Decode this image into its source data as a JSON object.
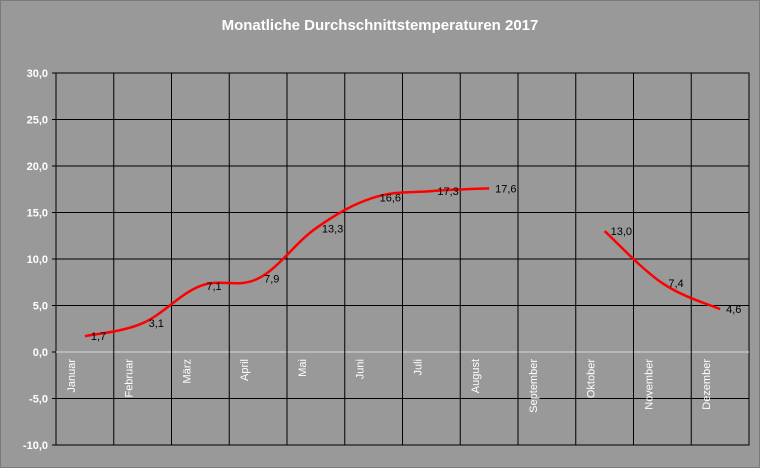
{
  "chart_data": {
    "type": "line",
    "title": "Monatliche Durchschnittstemperaturen 2017",
    "xlabel": "",
    "ylabel": "",
    "categories": [
      "Januar",
      "Februar",
      "März",
      "April",
      "Mai",
      "Juni",
      "Juli",
      "August",
      "September",
      "Oktober",
      "November",
      "Dezember"
    ],
    "series": [
      {
        "values": [
          1.7,
          3.1,
          7.1,
          7.9,
          13.3,
          16.6,
          17.3,
          17.6,
          null,
          13.0,
          7.4,
          4.6
        ],
        "labels": [
          "1,7",
          "3,1",
          "7,1",
          "7,9",
          "13,3",
          "16,6",
          "17,3",
          "17,6",
          "",
          "13,0",
          "7,4",
          "4,6"
        ],
        "color": "#ff0000"
      }
    ],
    "ylim": [
      -10,
      30
    ],
    "yticks": [
      30,
      25,
      20,
      15,
      10,
      5,
      0,
      -5,
      -10
    ],
    "ytick_labels": [
      "30,0",
      "25,0",
      "20,0",
      "15,0",
      "10,0",
      "5,0",
      "0,0",
      "-5,0",
      "-10,0"
    ],
    "grid": true,
    "legend": "none",
    "colors": {
      "background": "#999999",
      "gridline": "#000000",
      "zero_line": "#c8e0f0",
      "line": "#ff0000",
      "text": "#ffffff"
    }
  }
}
